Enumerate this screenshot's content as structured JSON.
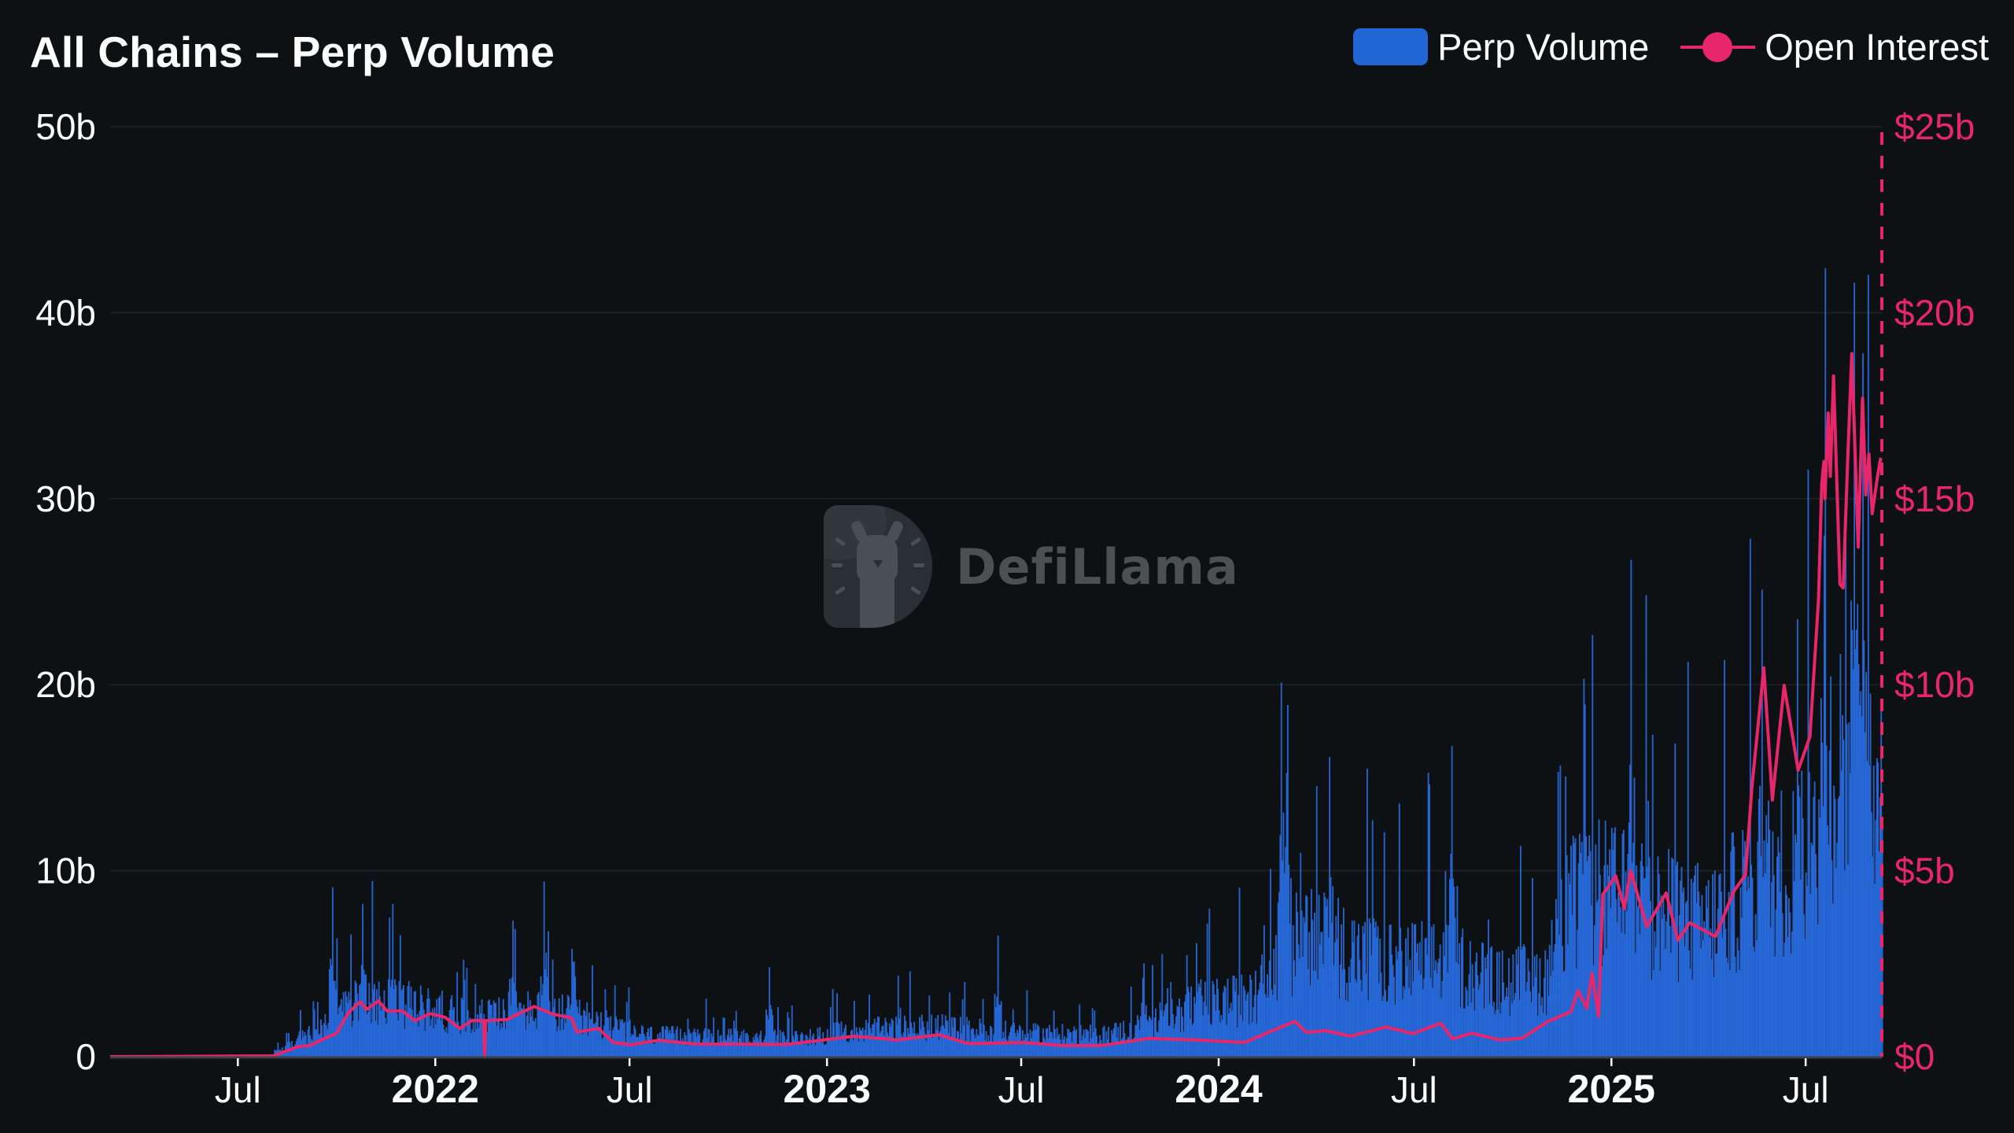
{
  "header": {
    "title": "All Chains – Perp Volume"
  },
  "legend": [
    {
      "label": "Perp Volume",
      "type": "bar",
      "color": "#2266d6"
    },
    {
      "label": "Open Interest",
      "type": "line",
      "color": "#e8266a"
    }
  ],
  "watermark": {
    "text": "DefiLlama"
  },
  "colors": {
    "background": "#0d1114",
    "grid": "#1b2025",
    "axis": "#3b4046",
    "bar": "#1f5cc4",
    "bar_edge": "#2b6ee0",
    "line": "#e8266a",
    "left_labels": "#ffffff",
    "right_labels": "#e8266a"
  },
  "chart_data": {
    "type": "bar+line",
    "title": "All Chains – Perp Volume",
    "xlabel": "",
    "ylabel": "Perp Volume",
    "y2label": "Open Interest",
    "x_range": [
      "2021-03-04",
      "2025-09-10"
    ],
    "x_ticks": [
      {
        "date": "2021-07-01",
        "label": "Jul",
        "major": false
      },
      {
        "date": "2022-01-01",
        "label": "2022",
        "major": true
      },
      {
        "date": "2022-07-01",
        "label": "Jul",
        "major": false
      },
      {
        "date": "2023-01-01",
        "label": "2023",
        "major": true
      },
      {
        "date": "2023-07-01",
        "label": "Jul",
        "major": false
      },
      {
        "date": "2024-01-01",
        "label": "2024",
        "major": true
      },
      {
        "date": "2024-07-01",
        "label": "Jul",
        "major": false
      },
      {
        "date": "2025-01-01",
        "label": "2025",
        "major": true
      },
      {
        "date": "2025-07-01",
        "label": "Jul",
        "major": false
      }
    ],
    "ylim": [
      0,
      50
    ],
    "y_ticks": [
      {
        "value": 0,
        "label": "0"
      },
      {
        "value": 10,
        "label": "10b"
      },
      {
        "value": 20,
        "label": "20b"
      },
      {
        "value": 30,
        "label": "30b"
      },
      {
        "value": 40,
        "label": "40b"
      },
      {
        "value": 50,
        "label": "50b"
      }
    ],
    "y2lim": [
      0,
      25
    ],
    "y2_ticks": [
      {
        "value": 0,
        "label": "$0"
      },
      {
        "value": 5,
        "label": "$5b"
      },
      {
        "value": 10,
        "label": "$10b"
      },
      {
        "value": 15,
        "label": "$15b"
      },
      {
        "value": 20,
        "label": "$20b"
      },
      {
        "value": 25,
        "label": "$25b"
      }
    ],
    "grid": true,
    "legend_position": "top-right",
    "series": [
      {
        "name": "Perp Volume",
        "type": "bar",
        "axis": "left",
        "unit": "b USD (daily)",
        "start": "2021-08-04",
        "end": "2025-09-10",
        "envelope": [
          [
            "2021-08-04",
            0.3
          ],
          [
            "2021-08-15",
            0.6
          ],
          [
            "2021-09-15",
            1.6
          ],
          [
            "2021-10-10",
            3.0
          ],
          [
            "2021-11-01",
            3.8
          ],
          [
            "2021-12-15",
            3.0
          ],
          [
            "2022-02-01",
            2.5
          ],
          [
            "2022-04-01",
            2.8
          ],
          [
            "2022-05-15",
            2.5
          ],
          [
            "2022-06-15",
            1.8
          ],
          [
            "2022-07-15",
            1.3
          ],
          [
            "2022-12-01",
            1.1
          ],
          [
            "2023-02-01",
            1.6
          ],
          [
            "2023-04-15",
            1.8
          ],
          [
            "2023-07-01",
            1.4
          ],
          [
            "2023-09-15",
            1.3
          ],
          [
            "2023-11-01",
            2.0
          ],
          [
            "2023-12-15",
            3.2
          ],
          [
            "2024-02-01",
            3.5
          ],
          [
            "2024-03-10",
            7.0
          ],
          [
            "2024-04-15",
            7.0
          ],
          [
            "2024-06-01",
            5.5
          ],
          [
            "2024-08-01",
            6.0
          ],
          [
            "2024-09-15",
            4.5
          ],
          [
            "2024-11-01",
            4.8
          ],
          [
            "2024-11-20",
            9.0
          ],
          [
            "2024-12-20",
            10.0
          ],
          [
            "2025-02-01",
            9.0
          ],
          [
            "2025-04-01",
            8.0
          ],
          [
            "2025-05-20",
            11.0
          ],
          [
            "2025-07-01",
            12.0
          ],
          [
            "2025-07-20",
            18.0
          ],
          [
            "2025-09-10",
            18.0
          ]
        ],
        "peaks": [
          [
            "2021-08-28",
            2.5
          ],
          [
            "2021-09-27",
            9.1
          ],
          [
            "2021-10-25",
            8.2
          ],
          [
            "2021-11-22",
            8.2
          ],
          [
            "2022-03-14",
            7.3
          ],
          [
            "2022-04-12",
            9.4
          ],
          [
            "2022-05-10",
            5.1
          ],
          [
            "2022-11-08",
            4.8
          ],
          [
            "2023-06-09",
            6.5
          ],
          [
            "2023-10-23",
            5.0
          ],
          [
            "2023-11-09",
            5.5
          ],
          [
            "2024-02-28",
            20.1
          ],
          [
            "2024-03-05",
            18.9
          ],
          [
            "2024-04-13",
            16.1
          ],
          [
            "2024-05-23",
            12.7
          ],
          [
            "2024-08-05",
            16.7
          ],
          [
            "2024-11-12",
            15.3
          ],
          [
            "2024-12-06",
            20.3
          ],
          [
            "2025-01-19",
            26.7
          ],
          [
            "2025-02-02",
            24.8
          ],
          [
            "2025-05-21",
            25.1
          ],
          [
            "2025-06-23",
            23.5
          ],
          [
            "2025-07-18",
            28.0
          ],
          [
            "2025-08-15",
            41.6
          ],
          [
            "2025-08-23",
            37.8
          ]
        ]
      },
      {
        "name": "Open Interest",
        "type": "line",
        "axis": "right",
        "unit": "b USD",
        "points": [
          [
            "2021-03-04",
            0.0
          ],
          [
            "2021-08-03",
            0.02
          ],
          [
            "2021-08-26",
            0.27
          ],
          [
            "2021-09-06",
            0.3
          ],
          [
            "2021-09-20",
            0.49
          ],
          [
            "2021-10-01",
            0.63
          ],
          [
            "2021-10-12",
            1.18
          ],
          [
            "2021-10-23",
            1.48
          ],
          [
            "2021-10-29",
            1.27
          ],
          [
            "2021-11-09",
            1.5
          ],
          [
            "2021-11-17",
            1.23
          ],
          [
            "2021-12-01",
            1.23
          ],
          [
            "2021-12-13",
            0.97
          ],
          [
            "2021-12-27",
            1.16
          ],
          [
            "2022-01-10",
            1.06
          ],
          [
            "2022-01-24",
            0.76
          ],
          [
            "2022-02-04",
            0.97
          ],
          [
            "2022-02-15",
            0.97
          ],
          [
            "2022-02-16",
            0.0
          ],
          [
            "2022-02-17",
            0.97
          ],
          [
            "2022-03-09",
            1.0
          ],
          [
            "2022-04-03",
            1.35
          ],
          [
            "2022-04-21",
            1.14
          ],
          [
            "2022-05-08",
            1.04
          ],
          [
            "2022-05-13",
            0.66
          ],
          [
            "2022-06-02",
            0.76
          ],
          [
            "2022-06-16",
            0.38
          ],
          [
            "2022-07-02",
            0.32
          ],
          [
            "2022-07-28",
            0.44
          ],
          [
            "2022-08-31",
            0.34
          ],
          [
            "2022-11-25",
            0.33
          ],
          [
            "2023-01-26",
            0.55
          ],
          [
            "2023-03-08",
            0.45
          ],
          [
            "2023-04-15",
            0.59
          ],
          [
            "2023-05-13",
            0.35
          ],
          [
            "2023-07-03",
            0.38
          ],
          [
            "2023-08-09",
            0.3
          ],
          [
            "2023-09-14",
            0.3
          ],
          [
            "2023-10-28",
            0.49
          ],
          [
            "2023-12-11",
            0.45
          ],
          [
            "2024-01-25",
            0.38
          ],
          [
            "2024-03-12",
            0.95
          ],
          [
            "2024-03-23",
            0.65
          ],
          [
            "2024-04-10",
            0.7
          ],
          [
            "2024-05-03",
            0.55
          ],
          [
            "2024-06-05",
            0.8
          ],
          [
            "2024-06-30",
            0.62
          ],
          [
            "2024-07-26",
            0.9
          ],
          [
            "2024-08-06",
            0.48
          ],
          [
            "2024-08-24",
            0.63
          ],
          [
            "2024-09-19",
            0.45
          ],
          [
            "2024-10-10",
            0.5
          ],
          [
            "2024-11-03",
            0.95
          ],
          [
            "2024-11-24",
            1.2
          ],
          [
            "2024-12-01",
            1.78
          ],
          [
            "2024-12-09",
            1.3
          ],
          [
            "2024-12-14",
            2.24
          ],
          [
            "2024-12-20",
            1.08
          ],
          [
            "2024-12-24",
            4.36
          ],
          [
            "2025-01-05",
            4.86
          ],
          [
            "2025-01-13",
            3.98
          ],
          [
            "2025-01-19",
            5.0
          ],
          [
            "2025-02-03",
            3.5
          ],
          [
            "2025-02-21",
            4.4
          ],
          [
            "2025-03-04",
            3.13
          ],
          [
            "2025-03-15",
            3.6
          ],
          [
            "2025-04-08",
            3.23
          ],
          [
            "2025-04-25",
            4.44
          ],
          [
            "2025-05-06",
            4.9
          ],
          [
            "2025-05-12",
            7.27
          ],
          [
            "2025-05-23",
            10.45
          ],
          [
            "2025-05-31",
            6.9
          ],
          [
            "2025-06-11",
            9.98
          ],
          [
            "2025-06-24",
            7.7
          ],
          [
            "2025-07-05",
            8.6
          ],
          [
            "2025-07-13",
            12.3
          ],
          [
            "2025-07-16",
            15.4
          ],
          [
            "2025-07-18",
            16.0
          ],
          [
            "2025-07-19",
            15.0
          ],
          [
            "2025-07-22",
            17.3
          ],
          [
            "2025-07-24",
            15.6
          ],
          [
            "2025-07-27",
            18.3
          ],
          [
            "2025-08-02",
            12.7
          ],
          [
            "2025-08-05",
            12.6
          ],
          [
            "2025-08-09",
            15.9
          ],
          [
            "2025-08-13",
            18.9
          ],
          [
            "2025-08-19",
            13.7
          ],
          [
            "2025-08-23",
            17.7
          ],
          [
            "2025-08-26",
            15.1
          ],
          [
            "2025-08-29",
            16.2
          ],
          [
            "2025-09-01",
            14.6
          ],
          [
            "2025-09-06",
            15.6
          ],
          [
            "2025-09-09",
            16.1
          ]
        ]
      }
    ],
    "annotations": [
      {
        "type": "vertical-dashed-line",
        "date": "2025-09-10",
        "color": "#e8266a"
      }
    ]
  }
}
